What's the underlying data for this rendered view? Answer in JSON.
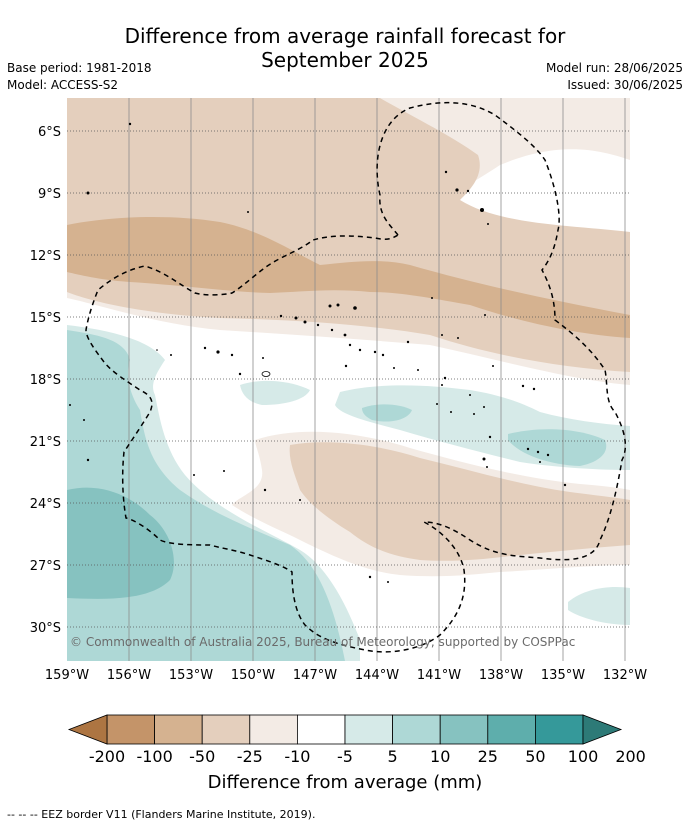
{
  "title": {
    "line1": "Difference from average rainfall forecast for",
    "line2": "September 2025"
  },
  "meta": {
    "base_period": "Base period: 1981-2018",
    "model": "Model: ACCESS-S2",
    "model_run": "Model run: 28/06/2025",
    "issued": "Issued: 30/06/2025"
  },
  "map": {
    "lat_labels": [
      "6°S",
      "9°S",
      "12°S",
      "15°S",
      "18°S",
      "21°S",
      "24°S",
      "27°S",
      "30°S"
    ],
    "lon_labels": [
      "159°W",
      "156°W",
      "153°W",
      "150°W",
      "147°W",
      "144°W",
      "141°W",
      "138°W",
      "135°W",
      "132°W"
    ],
    "copyright": "© Commonwealth of Australia 2025, Bureau of Meteorology, supported by COSPPac"
  },
  "colorbar": {
    "ticks": [
      "-200",
      "-100",
      "-50",
      "-25",
      "-10",
      "-5",
      "5",
      "10",
      "25",
      "50",
      "100",
      "200"
    ],
    "colors": [
      "#ad7542",
      "#c49469",
      "#d5b290",
      "#e4cfbd",
      "#f3ebe5",
      "#ffffff",
      "#d6eae8",
      "#aed8d6",
      "#86c2c0",
      "#5eaeac",
      "#35999a",
      "#2d7a77"
    ],
    "label": "Difference from average (mm)"
  },
  "footer": {
    "legend": "--  --  -- EEZ border V11 (Flanders Marine Institute, 2019)."
  }
}
